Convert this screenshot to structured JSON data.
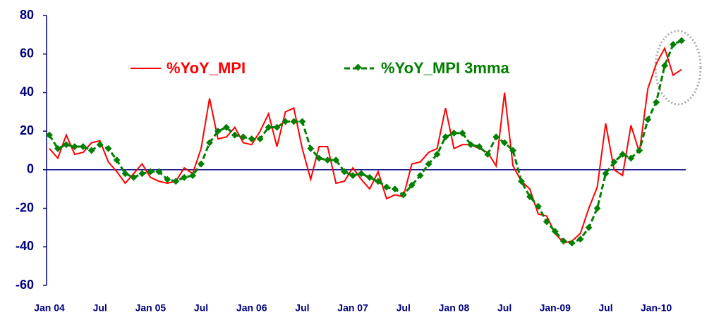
{
  "chart_data": {
    "type": "line",
    "categories": [
      "Jan 04",
      null,
      null,
      null,
      null,
      null,
      "Jul",
      null,
      null,
      null,
      null,
      null,
      "Jan 05",
      null,
      null,
      null,
      null,
      null,
      "Jul",
      null,
      null,
      null,
      null,
      null,
      "Jan  06",
      null,
      null,
      null,
      null,
      null,
      "Jul",
      null,
      null,
      null,
      null,
      null,
      "Jan  07",
      null,
      null,
      null,
      null,
      null,
      "Jul",
      null,
      null,
      null,
      null,
      null,
      "Jan 08",
      null,
      null,
      null,
      null,
      null,
      "Jul",
      null,
      null,
      null,
      null,
      null,
      "Jan-09",
      null,
      null,
      null,
      null,
      null,
      "Jul",
      null,
      null,
      null,
      null,
      null,
      "Jan-10",
      null,
      null,
      null
    ],
    "series": [
      {
        "name": "%YoY_MPI",
        "color": "#ff0000",
        "values": [
          11,
          6,
          18,
          8,
          9,
          14,
          15,
          4,
          -1,
          -7,
          -2,
          3,
          -4,
          -6,
          -7,
          -6,
          1,
          -2,
          11,
          37,
          16,
          17,
          22,
          14,
          13,
          20,
          29,
          12,
          30,
          32,
          11,
          -5,
          12,
          12,
          -7,
          -6,
          1,
          -5,
          -10,
          -1,
          -15,
          -13,
          -14,
          3,
          4,
          9,
          11,
          32,
          11,
          13,
          13,
          11,
          9,
          2,
          40,
          2,
          -6,
          -10,
          -23,
          -24,
          -33,
          -38,
          -37,
          -33,
          -20,
          -9,
          24,
          0,
          -3,
          23,
          9,
          42,
          55,
          63,
          49,
          52
        ]
      },
      {
        "name": "%YoY_MPI 3mma",
        "color": "#008000",
        "values": [
          18,
          11,
          13,
          12,
          12,
          10,
          13,
          11,
          5,
          -2,
          -4,
          -2,
          -1,
          -1,
          -5,
          -6,
          -4,
          -3,
          3,
          14,
          20,
          22,
          18,
          17,
          16,
          16,
          22,
          22,
          25,
          25,
          25,
          11,
          6,
          5,
          5,
          -1,
          -3,
          -2,
          -4,
          -6,
          -9,
          -10,
          -13,
          -8,
          -3,
          3,
          8,
          17,
          19,
          19,
          13,
          12,
          8,
          17,
          14,
          10,
          -6,
          -14,
          -19,
          -27,
          -32,
          -37,
          -38,
          -36,
          -30,
          -20,
          -2,
          4,
          8,
          6,
          10,
          26,
          35,
          54,
          65,
          67
        ]
      }
    ],
    "ylim": [
      -60,
      80
    ],
    "yticks": [
      -60,
      -40,
      -20,
      0,
      20,
      40,
      60,
      80
    ]
  }
}
